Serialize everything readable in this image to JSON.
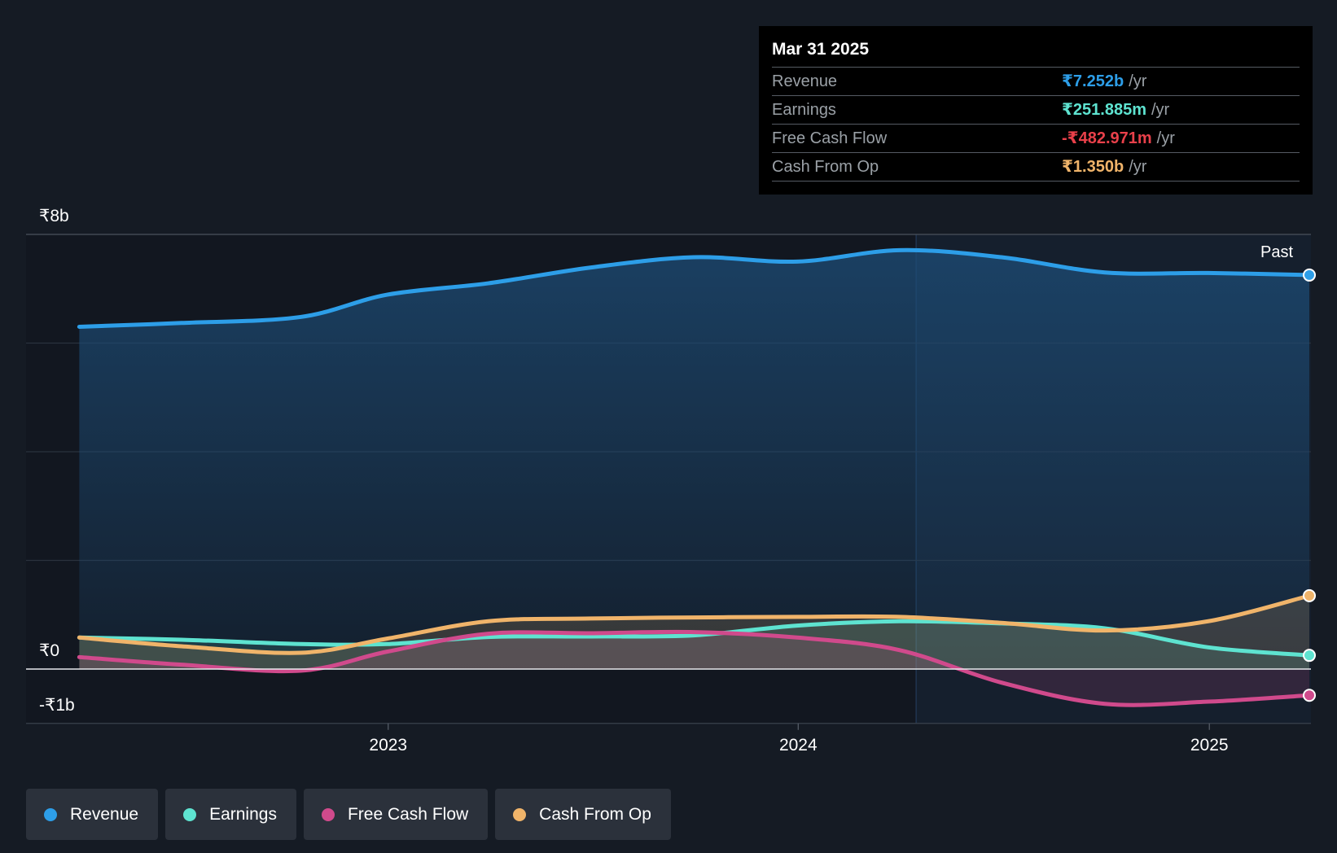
{
  "tooltip": {
    "date": "Mar 31 2025",
    "unit": "/yr",
    "rows": [
      {
        "label": "Revenue",
        "value": "₹7.252b",
        "color": "#2d9ee8"
      },
      {
        "label": "Earnings",
        "value": "₹251.885m",
        "color": "#5ee3d0"
      },
      {
        "label": "Free Cash Flow",
        "value": "-₹482.971m",
        "color": "#e8404a"
      },
      {
        "label": "Cash From Op",
        "value": "₹1.350b",
        "color": "#f0b46a"
      }
    ]
  },
  "past_label": "Past",
  "legend": [
    {
      "label": "Revenue",
      "color": "#2d9ee8"
    },
    {
      "label": "Earnings",
      "color": "#5ee3d0"
    },
    {
      "label": "Free Cash Flow",
      "color": "#d04a8c"
    },
    {
      "label": "Cash From Op",
      "color": "#f0b46a"
    }
  ],
  "chart_data": {
    "type": "line",
    "ylim": [
      -1000000000,
      8000000000
    ],
    "y_ticks": [
      {
        "value": 8000000000,
        "label": "₹8b"
      },
      {
        "value": 0,
        "label": "₹0"
      },
      {
        "value": -1000000000,
        "label": "-₹1b"
      }
    ],
    "x_ticks": [
      {
        "date": "2023-01-01",
        "label": "2023"
      },
      {
        "date": "2024-01-01",
        "label": "2024"
      },
      {
        "date": "2025-01-01",
        "label": "2025"
      }
    ],
    "x_range": [
      "2022-03-31",
      "2025-03-31"
    ],
    "highlight_start": "2024-04-15",
    "series": [
      {
        "name": "Revenue",
        "color": "#2d9ee8",
        "points": [
          [
            "2022-04-01",
            6300000000
          ],
          [
            "2022-07-01",
            6370000000
          ],
          [
            "2022-10-15",
            6480000000
          ],
          [
            "2022-12-31",
            6890000000
          ],
          [
            "2023-03-31",
            7100000000
          ],
          [
            "2023-06-30",
            7390000000
          ],
          [
            "2023-09-30",
            7580000000
          ],
          [
            "2023-12-31",
            7500000000
          ],
          [
            "2024-03-31",
            7710000000
          ],
          [
            "2024-06-30",
            7580000000
          ],
          [
            "2024-09-30",
            7300000000
          ],
          [
            "2024-12-31",
            7290000000
          ],
          [
            "2025-03-31",
            7252000000
          ]
        ]
      },
      {
        "name": "Earnings",
        "color": "#5ee3d0",
        "points": [
          [
            "2022-04-01",
            580000000
          ],
          [
            "2022-07-01",
            540000000
          ],
          [
            "2022-10-15",
            460000000
          ],
          [
            "2022-12-31",
            460000000
          ],
          [
            "2023-03-31",
            590000000
          ],
          [
            "2023-06-30",
            600000000
          ],
          [
            "2023-09-30",
            620000000
          ],
          [
            "2023-12-31",
            800000000
          ],
          [
            "2024-03-31",
            880000000
          ],
          [
            "2024-06-30",
            840000000
          ],
          [
            "2024-09-30",
            750000000
          ],
          [
            "2024-12-31",
            400000000
          ],
          [
            "2025-03-31",
            251885000
          ]
        ]
      },
      {
        "name": "Free Cash Flow",
        "color": "#d04a8c",
        "points": [
          [
            "2022-04-01",
            220000000
          ],
          [
            "2022-07-01",
            80000000
          ],
          [
            "2022-10-15",
            -30000000
          ],
          [
            "2022-12-31",
            320000000
          ],
          [
            "2023-03-31",
            650000000
          ],
          [
            "2023-06-30",
            660000000
          ],
          [
            "2023-09-30",
            680000000
          ],
          [
            "2023-12-31",
            580000000
          ],
          [
            "2024-03-31",
            350000000
          ],
          [
            "2024-06-30",
            -250000000
          ],
          [
            "2024-09-30",
            -640000000
          ],
          [
            "2024-12-31",
            -600000000
          ],
          [
            "2025-03-31",
            -482971000
          ]
        ]
      },
      {
        "name": "Cash From Op",
        "color": "#f0b46a",
        "points": [
          [
            "2022-04-01",
            580000000
          ],
          [
            "2022-07-01",
            420000000
          ],
          [
            "2022-10-15",
            300000000
          ],
          [
            "2022-12-31",
            560000000
          ],
          [
            "2023-03-31",
            880000000
          ],
          [
            "2023-06-30",
            930000000
          ],
          [
            "2023-09-30",
            950000000
          ],
          [
            "2023-12-31",
            960000000
          ],
          [
            "2024-03-31",
            960000000
          ],
          [
            "2024-06-30",
            850000000
          ],
          [
            "2024-09-30",
            710000000
          ],
          [
            "2024-12-31",
            880000000
          ],
          [
            "2025-03-31",
            1350000000
          ]
        ]
      }
    ]
  }
}
